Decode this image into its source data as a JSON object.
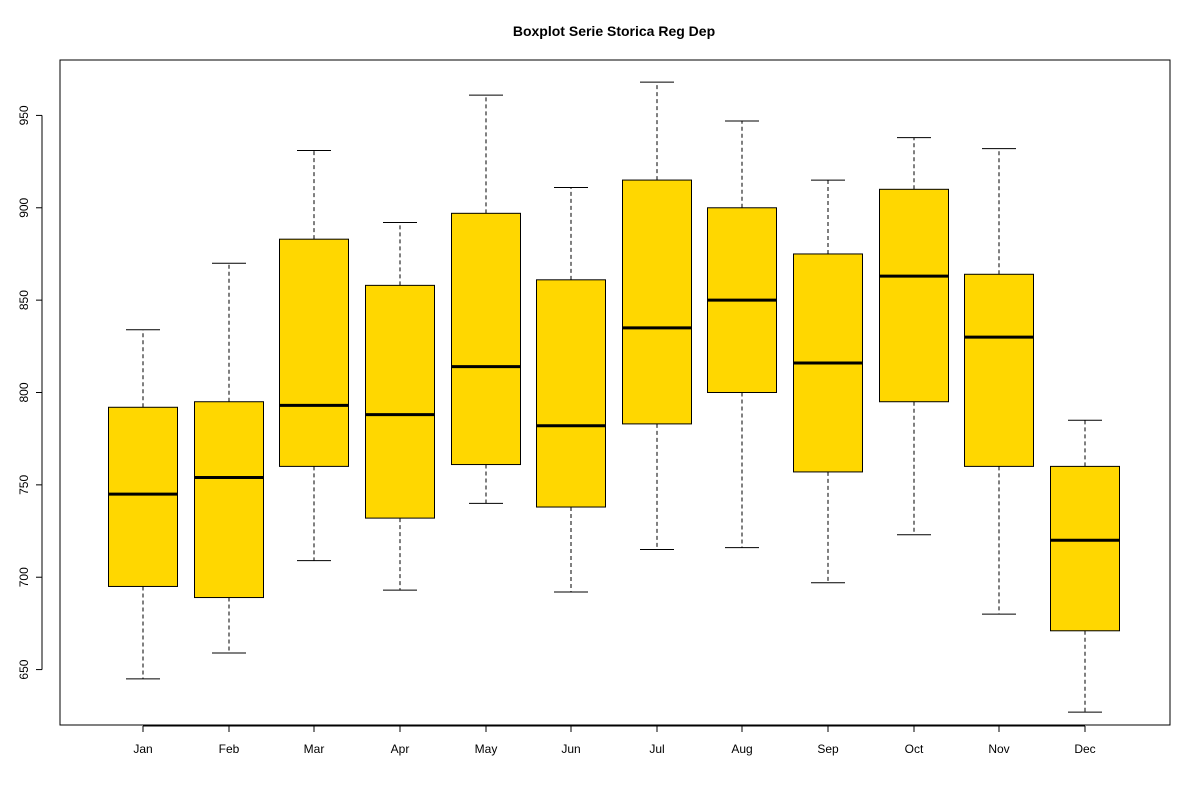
{
  "chart_data": {
    "type": "boxplot",
    "title": "Boxplot  Serie Storica Reg Dep",
    "xlabel": "",
    "ylabel": "",
    "categories": [
      "Jan",
      "Feb",
      "Mar",
      "Apr",
      "May",
      "Jun",
      "Jul",
      "Aug",
      "Sep",
      "Oct",
      "Nov",
      "Dec"
    ],
    "boxes": [
      {
        "category": "Jan",
        "whisker_low": 645,
        "q1": 695,
        "median": 745,
        "q3": 792,
        "whisker_high": 834
      },
      {
        "category": "Feb",
        "whisker_low": 659,
        "q1": 689,
        "median": 754,
        "q3": 795,
        "whisker_high": 870
      },
      {
        "category": "Mar",
        "whisker_low": 709,
        "q1": 760,
        "median": 793,
        "q3": 883,
        "whisker_high": 931
      },
      {
        "category": "Apr",
        "whisker_low": 693,
        "q1": 732,
        "median": 788,
        "q3": 858,
        "whisker_high": 892
      },
      {
        "category": "May",
        "whisker_low": 740,
        "q1": 761,
        "median": 814,
        "q3": 897,
        "whisker_high": 961
      },
      {
        "category": "Jun",
        "whisker_low": 692,
        "q1": 738,
        "median": 782,
        "q3": 861,
        "whisker_high": 911
      },
      {
        "category": "Jul",
        "whisker_low": 715,
        "q1": 783,
        "median": 835,
        "q3": 915,
        "whisker_high": 968
      },
      {
        "category": "Aug",
        "whisker_low": 716,
        "q1": 800,
        "median": 850,
        "q3": 900,
        "whisker_high": 947
      },
      {
        "category": "Sep",
        "whisker_low": 697,
        "q1": 757,
        "median": 816,
        "q3": 875,
        "whisker_high": 915
      },
      {
        "category": "Oct",
        "whisker_low": 723,
        "q1": 795,
        "median": 863,
        "q3": 910,
        "whisker_high": 938
      },
      {
        "category": "Nov",
        "whisker_low": 680,
        "q1": 760,
        "median": 830,
        "q3": 864,
        "whisker_high": 932
      },
      {
        "category": "Dec",
        "whisker_low": 627,
        "q1": 671,
        "median": 720,
        "q3": 760,
        "whisker_high": 785
      }
    ],
    "y_ticks": [
      650,
      700,
      750,
      800,
      850,
      900,
      950
    ],
    "y_tick_labels": [
      "650",
      "700",
      "750",
      "800",
      "850",
      "900",
      "950"
    ],
    "ylim": [
      620,
      980
    ],
    "grid": false,
    "legend": "none",
    "colors": {
      "box_fill": "#FFD700",
      "box_edge": "#000000",
      "whisker": "#000000",
      "median": "#000000",
      "axis": "#000000",
      "text": "#000000"
    }
  }
}
